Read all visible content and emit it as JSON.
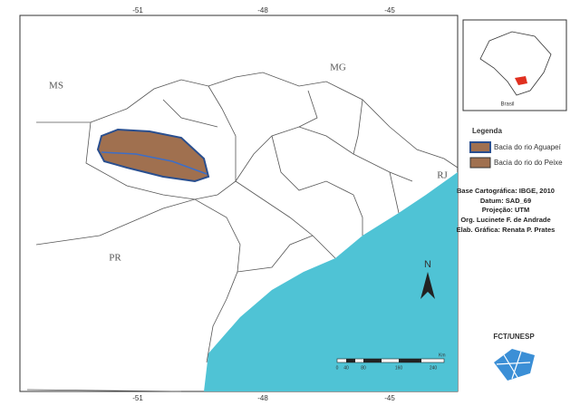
{
  "map": {
    "lon_labels_top": [
      "-51",
      "-48",
      "-45"
    ],
    "lon_labels_bottom": [
      "-51",
      "-48",
      "-45"
    ],
    "states": [
      "MS",
      "MG",
      "RJ",
      "PR"
    ],
    "inset_label": "Brasil",
    "legend": {
      "title": "Legenda",
      "items": [
        "Bacia do rio Aguapeí",
        "Bacia do rio do Peixe"
      ]
    },
    "credits": [
      "Base Cartográfica: IBGE, 2010",
      "Datum: SAD_69",
      "Projeção: UTM",
      "Org. Lucinete F. de Andrade",
      "Elab. Gráfica: Renata P. Prates"
    ],
    "north": "N",
    "scale": {
      "labels": [
        "0",
        "40",
        "80",
        "160",
        "240"
      ],
      "unit": "Km"
    },
    "logo": "FCT/UNESP"
  }
}
